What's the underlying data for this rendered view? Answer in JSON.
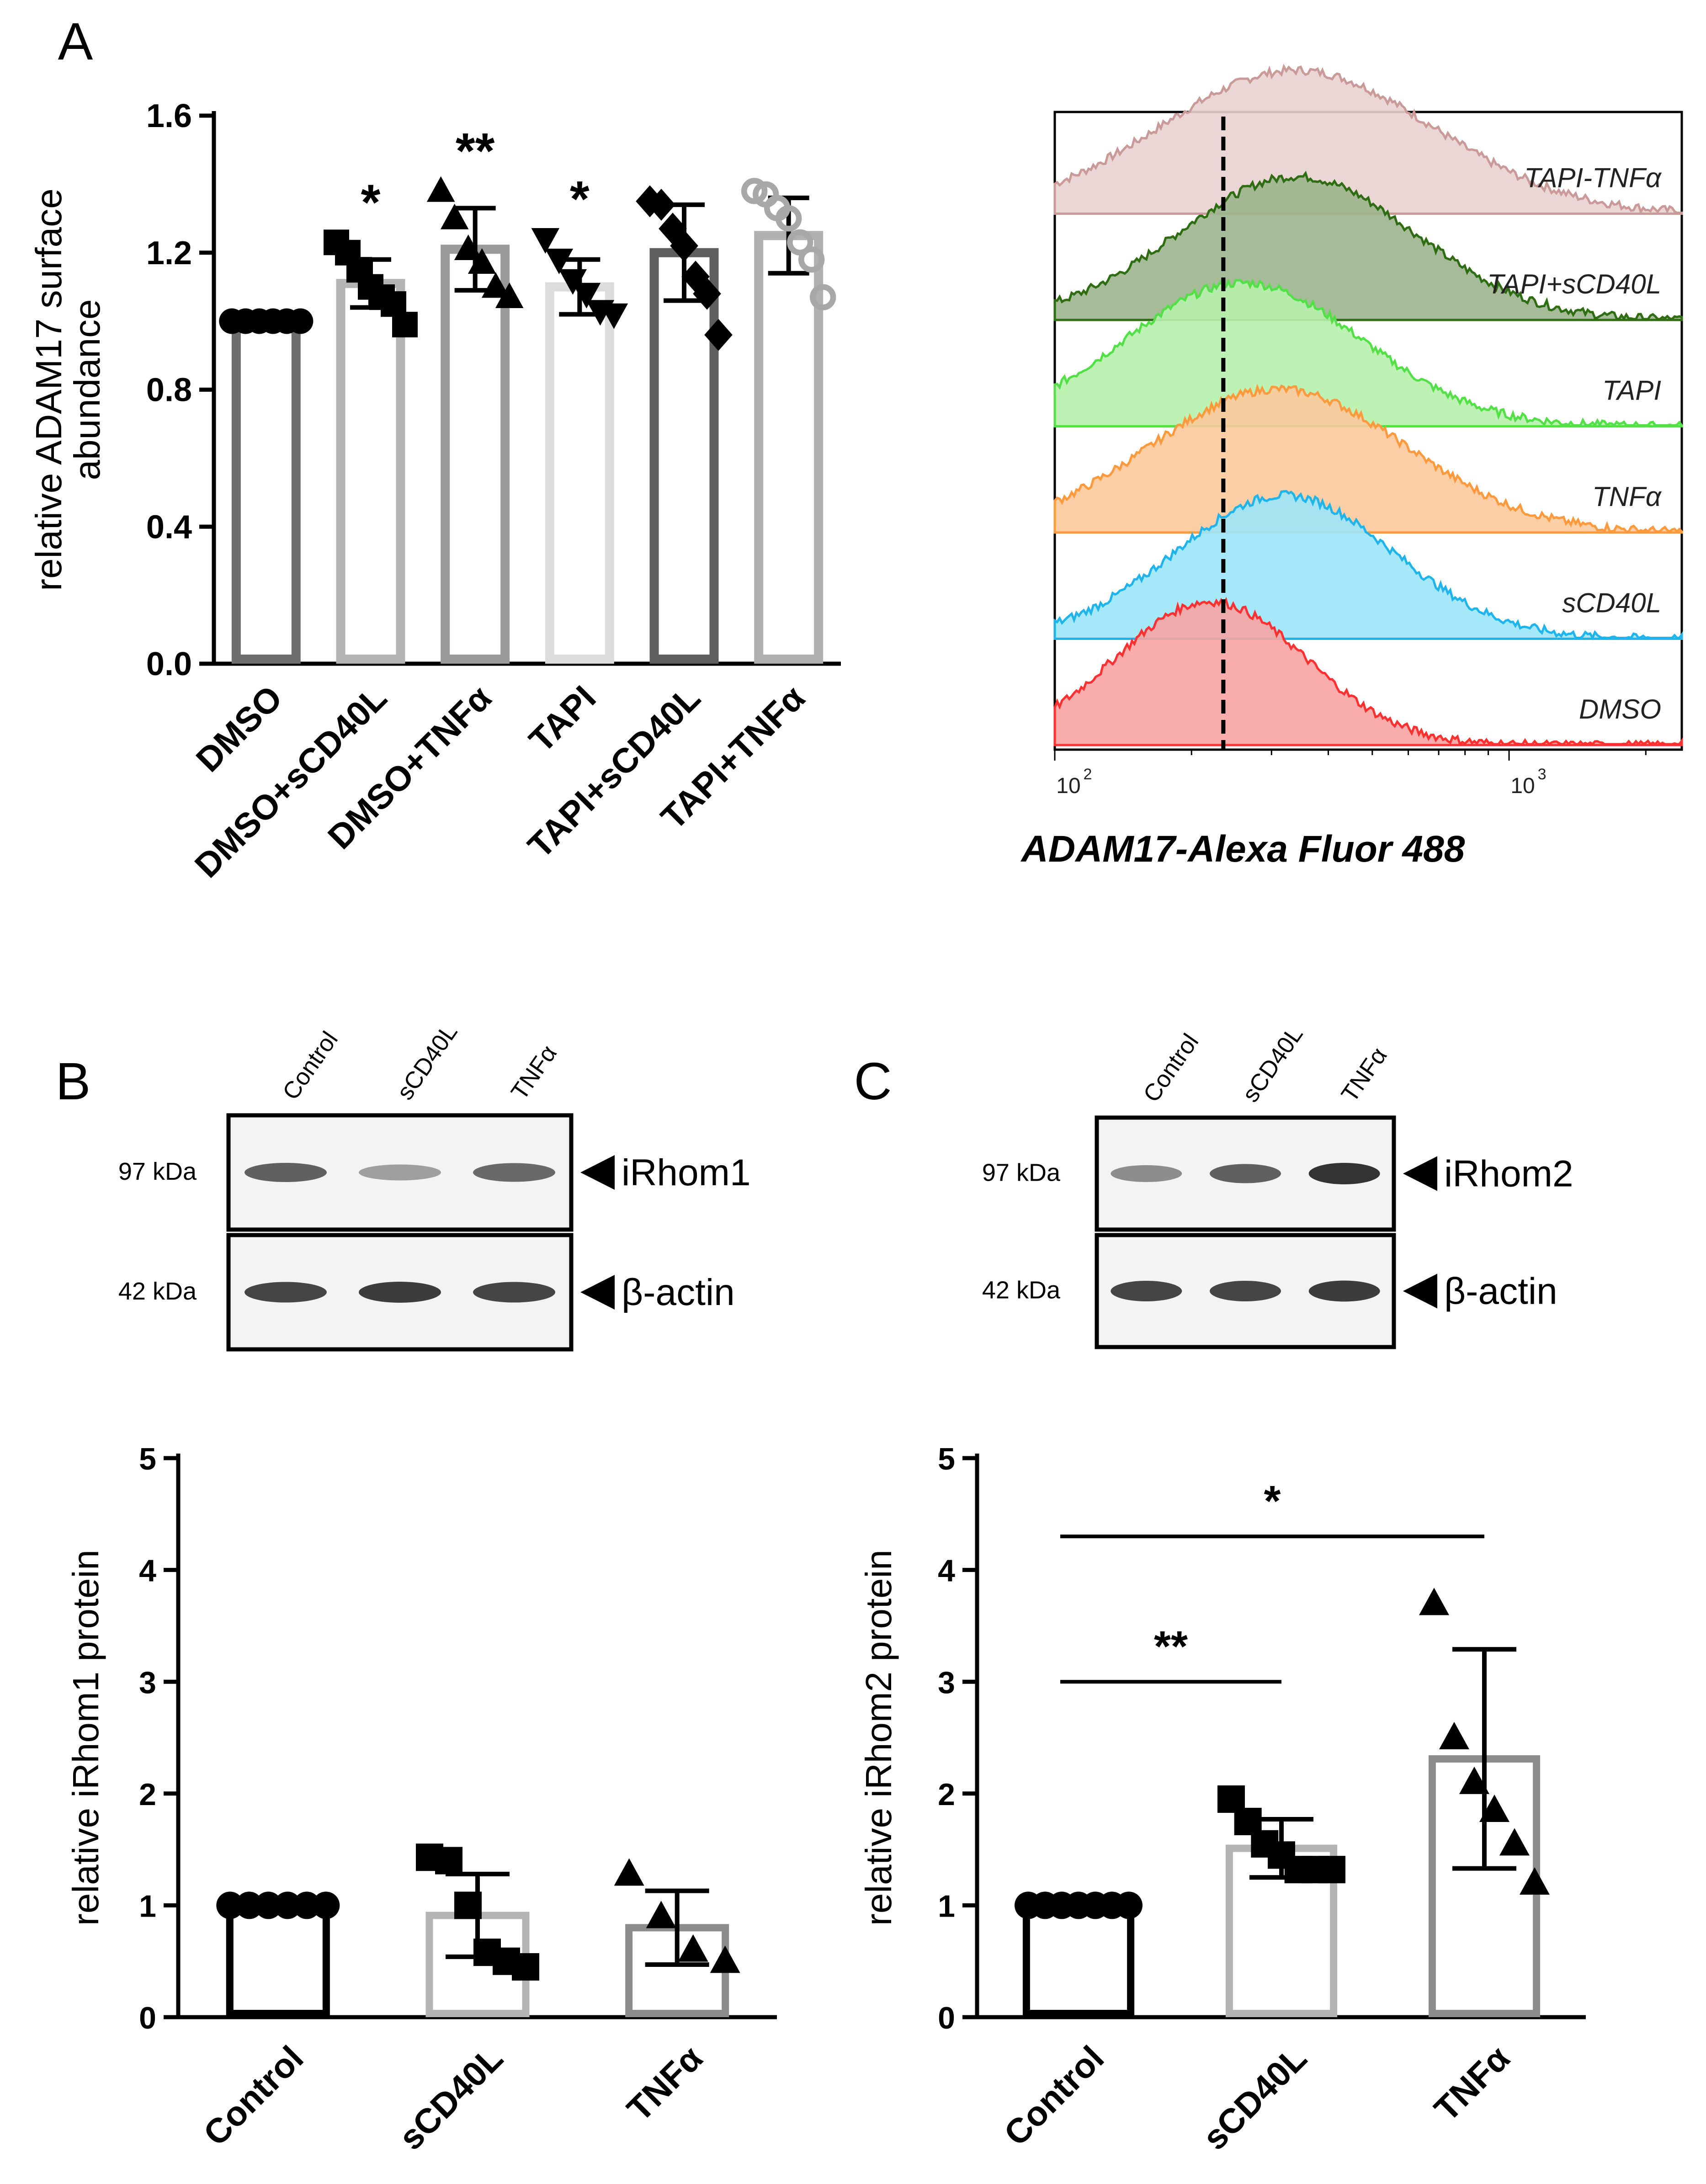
{
  "panels": {
    "A": "A",
    "B": "B",
    "C": "C"
  },
  "chart_data": [
    {
      "id": "A-bar",
      "type": "bar",
      "ylabel": "relative ADAM17 surface abundance",
      "ylim": [
        0,
        1.6
      ],
      "yticks": [
        "0.0",
        "0.4",
        "0.8",
        "1.2",
        "1.6"
      ],
      "categories": [
        "DMSO",
        "DMSO+sCD40L",
        "DMSO+TNFα",
        "TAPI",
        "TAPI+sCD40L",
        "TAPI+TNFα"
      ],
      "values": [
        1.0,
        1.11,
        1.21,
        1.1,
        1.2,
        1.25
      ],
      "sd": [
        0,
        0.07,
        0.12,
        0.08,
        0.14,
        0.11
      ],
      "bar_colors": [
        "#6e6e6e",
        "#b4b4b4",
        "#9a9a9a",
        "#dcdcdc",
        "#5e5e5e",
        "#b0b0b0"
      ],
      "marker_colors": [
        "#000000",
        "#000000",
        "#000000",
        "#000000",
        "#000000",
        "#a8a8a8"
      ],
      "markers": [
        "circle",
        "square",
        "triangle",
        "triangle-down",
        "diamond",
        "circle-open"
      ],
      "points": [
        [
          1,
          1,
          1,
          1,
          1,
          1
        ],
        [
          1.23,
          1.2,
          1.15,
          1.1,
          1.07,
          1.05,
          0.99
        ],
        [
          1.38,
          1.3,
          1.21,
          1.17,
          1.1,
          1.07
        ],
        [
          1.24,
          1.18,
          1.12,
          1.08,
          1.03,
          1.02
        ],
        [
          1.35,
          1.34,
          1.27,
          1.22,
          1.13,
          1.08,
          0.96
        ],
        [
          1.38,
          1.37,
          1.33,
          1.3,
          1.23,
          1.18,
          1.07
        ]
      ],
      "significance": [
        "",
        "*",
        "**",
        "*",
        "",
        ""
      ]
    },
    {
      "id": "A-histogram",
      "type": "area",
      "xlabel": "ADAM17-Alexa Fluor 488",
      "xscale": "log",
      "xticks": [
        "10",
        "10"
      ],
      "xtick_exponents": [
        "2",
        "3"
      ],
      "xlim": [
        100,
        2400
      ],
      "reference_line_x": 235,
      "series": [
        {
          "name": "DMSO",
          "color": "#ff3030",
          "fill": "#f7a3a3",
          "peak": 220,
          "width": 0.21
        },
        {
          "name": "sCD40L",
          "color": "#1fb4ec",
          "fill": "#9be6fa",
          "peak": 320,
          "width": 0.24
        },
        {
          "name": "TNFα",
          "color": "#ff9a3c",
          "fill": "#fcc99c",
          "peak": 310,
          "width": 0.28
        },
        {
          "name": "TAPI",
          "color": "#52e046",
          "fill": "#b7f1ad",
          "peak": 260,
          "width": 0.26
        },
        {
          "name": "TAPI+sCD40L",
          "color": "#2e6d12",
          "fill": "#9cb58d",
          "peak": 340,
          "width": 0.26
        },
        {
          "name": "TAPI-TNFα",
          "color": "#c99a98",
          "fill": "#e8d2d0",
          "peak": 340,
          "width": 0.3
        }
      ]
    },
    {
      "id": "B-bar",
      "type": "bar",
      "ylabel": "relative iRhom1 protein",
      "ylim": [
        0,
        5
      ],
      "yticks": [
        "0",
        "1",
        "2",
        "3",
        "4",
        "5"
      ],
      "categories": [
        "Control",
        "sCD40L",
        "TNFα"
      ],
      "values": [
        1.0,
        0.91,
        0.8
      ],
      "sd": [
        0,
        0.37,
        0.33
      ],
      "bar_colors": [
        "#000000",
        "#b4b4b4",
        "#8c8c8c"
      ],
      "marker_colors": [
        "#000000",
        "#000000",
        "#000000"
      ],
      "markers": [
        "circle",
        "square",
        "triangle"
      ],
      "points": [
        [
          1,
          1,
          1,
          1,
          1,
          1
        ],
        [
          1.43,
          1.4,
          1.0,
          0.58,
          0.5,
          0.45
        ],
        [
          1.28,
          0.9,
          0.6,
          0.5
        ]
      ],
      "significance_bars": []
    },
    {
      "id": "C-bar",
      "type": "bar",
      "ylabel": "relative iRhom2 protein",
      "ylim": [
        0,
        5
      ],
      "yticks": [
        "0",
        "1",
        "2",
        "3",
        "4",
        "5"
      ],
      "categories": [
        "Control",
        "sCD40L",
        "TNFα"
      ],
      "values": [
        1.0,
        1.51,
        2.31
      ],
      "sd": [
        0,
        0.26,
        0.98
      ],
      "bar_colors": [
        "#000000",
        "#b4b4b4",
        "#8c8c8c"
      ],
      "marker_colors": [
        "#000000",
        "#000000",
        "#000000"
      ],
      "markers": [
        "circle",
        "square",
        "triangle"
      ],
      "points": [
        [
          1,
          1,
          1,
          1,
          1,
          1,
          1
        ],
        [
          1.95,
          1.75,
          1.55,
          1.45,
          1.32,
          1.32,
          1.32
        ],
        [
          3.7,
          2.5,
          2.1,
          1.85,
          1.55,
          1.2
        ]
      ],
      "significance_bars": [
        {
          "from": 0,
          "to": 1,
          "label": "**",
          "y": 3.0
        },
        {
          "from": 0,
          "to": 2,
          "label": "*",
          "y": 4.3
        }
      ]
    }
  ],
  "blots": {
    "B": {
      "lanes": [
        "Control",
        "sCD40L",
        "TNFα"
      ],
      "rows": [
        {
          "kda": "97 kDa",
          "target": "iRhom1",
          "intensity": [
            0.7,
            0.35,
            0.65
          ]
        },
        {
          "kda": "42 kDa",
          "target": "β-actin",
          "intensity": [
            0.85,
            0.9,
            0.85
          ]
        }
      ]
    },
    "C": {
      "lanes": [
        "Control",
        "sCD40L",
        "TNFα"
      ],
      "rows": [
        {
          "kda": "97 kDa",
          "target": "iRhom2",
          "intensity": [
            0.45,
            0.7,
            0.95
          ]
        },
        {
          "kda": "42 kDa",
          "target": "β-actin",
          "intensity": [
            0.85,
            0.85,
            0.9
          ]
        }
      ]
    }
  }
}
